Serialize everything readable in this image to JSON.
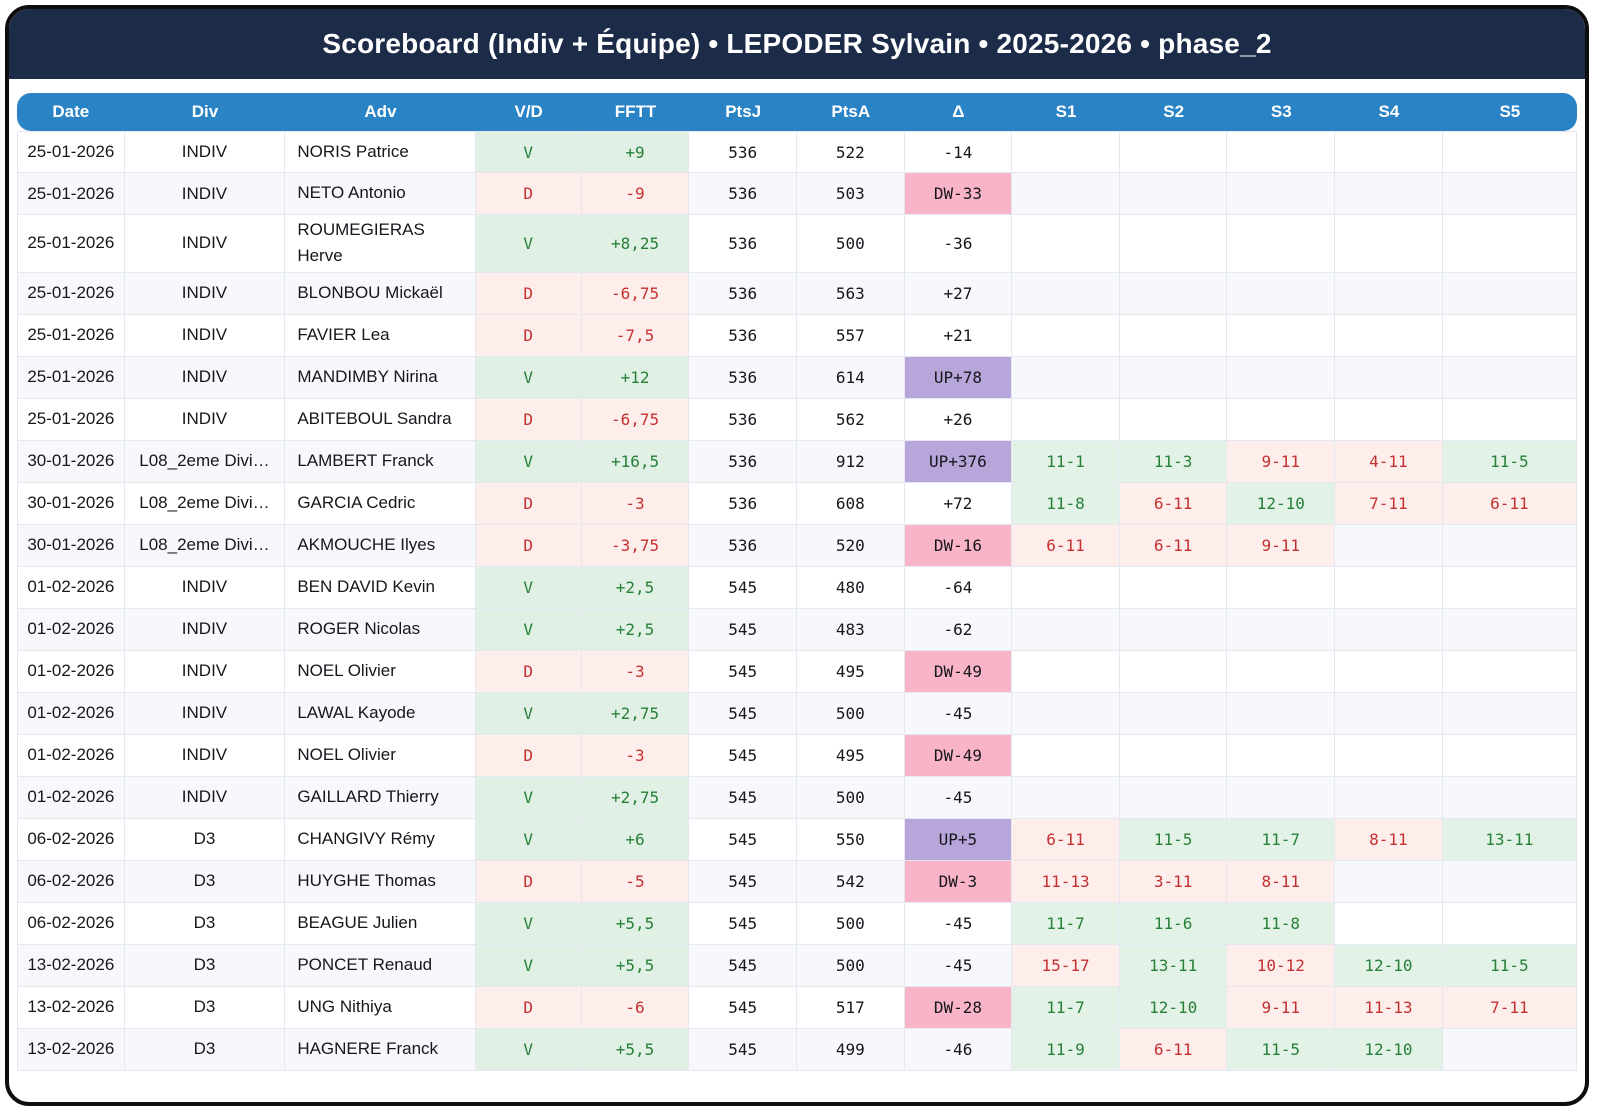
{
  "title": "Scoreboard (Indiv + Équipe) • LEPODER Sylvain • 2025-2026 • phase_2",
  "colors": {
    "title_bar": "#1c2b48",
    "header_bg": "#2a83c5",
    "border": "#e5e8f0",
    "stripe_bg": "#f6f8fc",
    "win_bg": "#e0f0e4",
    "win_text": "#268038",
    "set_win_bg": "#e3f2e7",
    "loss_bg": "#fdedeb",
    "loss_text": "#c43131",
    "up_bg": "#b8a6da",
    "dw_bg": "#f9b4c8"
  },
  "table": {
    "columns": [
      "Date",
      "Div",
      "Adv",
      "V/D",
      "FFTT",
      "PtsJ",
      "PtsA",
      "Δ",
      "S1",
      "S2",
      "S3",
      "S4",
      "S5"
    ],
    "rows": [
      {
        "date": "25-01-2026",
        "div": "INDIV",
        "adv": "NORIS Patrice",
        "vd": "V",
        "fftt": "+9",
        "ptsj": "536",
        "ptsa": "522",
        "delta": "-14",
        "sets": [
          "",
          "",
          "",
          "",
          ""
        ]
      },
      {
        "date": "25-01-2026",
        "div": "INDIV",
        "adv": "NETO Antonio",
        "vd": "D",
        "fftt": "-9",
        "ptsj": "536",
        "ptsa": "503",
        "delta": "DW-33",
        "sets": [
          "",
          "",
          "",
          "",
          ""
        ]
      },
      {
        "date": "25-01-2026",
        "div": "INDIV",
        "adv": "ROUMEGIERAS Herve",
        "vd": "V",
        "fftt": "+8,25",
        "ptsj": "536",
        "ptsa": "500",
        "delta": "-36",
        "sets": [
          "",
          "",
          "",
          "",
          ""
        ]
      },
      {
        "date": "25-01-2026",
        "div": "INDIV",
        "adv": "BLONBOU Mickaël",
        "vd": "D",
        "fftt": "-6,75",
        "ptsj": "536",
        "ptsa": "563",
        "delta": "+27",
        "sets": [
          "",
          "",
          "",
          "",
          ""
        ]
      },
      {
        "date": "25-01-2026",
        "div": "INDIV",
        "adv": "FAVIER Lea",
        "vd": "D",
        "fftt": "-7,5",
        "ptsj": "536",
        "ptsa": "557",
        "delta": "+21",
        "sets": [
          "",
          "",
          "",
          "",
          ""
        ]
      },
      {
        "date": "25-01-2026",
        "div": "INDIV",
        "adv": "MANDIMBY Nirina",
        "vd": "V",
        "fftt": "+12",
        "ptsj": "536",
        "ptsa": "614",
        "delta": "UP+78",
        "sets": [
          "",
          "",
          "",
          "",
          ""
        ]
      },
      {
        "date": "25-01-2026",
        "div": "INDIV",
        "adv": "ABITEBOUL Sandra",
        "vd": "D",
        "fftt": "-6,75",
        "ptsj": "536",
        "ptsa": "562",
        "delta": "+26",
        "sets": [
          "",
          "",
          "",
          "",
          ""
        ]
      },
      {
        "date": "30-01-2026",
        "div": "L08_2eme Divi…",
        "adv": "LAMBERT Franck",
        "vd": "V",
        "fftt": "+16,5",
        "ptsj": "536",
        "ptsa": "912",
        "delta": "UP+376",
        "sets": [
          "11-1",
          "11-3",
          "9-11",
          "4-11",
          "11-5"
        ]
      },
      {
        "date": "30-01-2026",
        "div": "L08_2eme Divi…",
        "adv": "GARCIA Cedric",
        "vd": "D",
        "fftt": "-3",
        "ptsj": "536",
        "ptsa": "608",
        "delta": "+72",
        "sets": [
          "11-8",
          "6-11",
          "12-10",
          "7-11",
          "6-11"
        ]
      },
      {
        "date": "30-01-2026",
        "div": "L08_2eme Divi…",
        "adv": "AKMOUCHE Ilyes",
        "vd": "D",
        "fftt": "-3,75",
        "ptsj": "536",
        "ptsa": "520",
        "delta": "DW-16",
        "sets": [
          "6-11",
          "6-11",
          "9-11",
          "",
          ""
        ]
      },
      {
        "date": "01-02-2026",
        "div": "INDIV",
        "adv": "BEN DAVID Kevin",
        "vd": "V",
        "fftt": "+2,5",
        "ptsj": "545",
        "ptsa": "480",
        "delta": "-64",
        "sets": [
          "",
          "",
          "",
          "",
          ""
        ]
      },
      {
        "date": "01-02-2026",
        "div": "INDIV",
        "adv": "ROGER Nicolas",
        "vd": "V",
        "fftt": "+2,5",
        "ptsj": "545",
        "ptsa": "483",
        "delta": "-62",
        "sets": [
          "",
          "",
          "",
          "",
          ""
        ]
      },
      {
        "date": "01-02-2026",
        "div": "INDIV",
        "adv": "NOEL Olivier",
        "vd": "D",
        "fftt": "-3",
        "ptsj": "545",
        "ptsa": "495",
        "delta": "DW-49",
        "sets": [
          "",
          "",
          "",
          "",
          ""
        ]
      },
      {
        "date": "01-02-2026",
        "div": "INDIV",
        "adv": "LAWAL Kayode",
        "vd": "V",
        "fftt": "+2,75",
        "ptsj": "545",
        "ptsa": "500",
        "delta": "-45",
        "sets": [
          "",
          "",
          "",
          "",
          ""
        ]
      },
      {
        "date": "01-02-2026",
        "div": "INDIV",
        "adv": "NOEL Olivier",
        "vd": "D",
        "fftt": "-3",
        "ptsj": "545",
        "ptsa": "495",
        "delta": "DW-49",
        "sets": [
          "",
          "",
          "",
          "",
          ""
        ]
      },
      {
        "date": "01-02-2026",
        "div": "INDIV",
        "adv": "GAILLARD Thierry",
        "vd": "V",
        "fftt": "+2,75",
        "ptsj": "545",
        "ptsa": "500",
        "delta": "-45",
        "sets": [
          "",
          "",
          "",
          "",
          ""
        ]
      },
      {
        "date": "06-02-2026",
        "div": "D3",
        "adv": "CHANGIVY Rémy",
        "vd": "V",
        "fftt": "+6",
        "ptsj": "545",
        "ptsa": "550",
        "delta": "UP+5",
        "sets": [
          "6-11",
          "11-5",
          "11-7",
          "8-11",
          "13-11"
        ]
      },
      {
        "date": "06-02-2026",
        "div": "D3",
        "adv": "HUYGHE Thomas",
        "vd": "D",
        "fftt": "-5",
        "ptsj": "545",
        "ptsa": "542",
        "delta": "DW-3",
        "sets": [
          "11-13",
          "3-11",
          "8-11",
          "",
          ""
        ]
      },
      {
        "date": "06-02-2026",
        "div": "D3",
        "adv": "BEAGUE Julien",
        "vd": "V",
        "fftt": "+5,5",
        "ptsj": "545",
        "ptsa": "500",
        "delta": "-45",
        "sets": [
          "11-7",
          "11-6",
          "11-8",
          "",
          ""
        ]
      },
      {
        "date": "13-02-2026",
        "div": "D3",
        "adv": "PONCET Renaud",
        "vd": "V",
        "fftt": "+5,5",
        "ptsj": "545",
        "ptsa": "500",
        "delta": "-45",
        "sets": [
          "15-17",
          "13-11",
          "10-12",
          "12-10",
          "11-5"
        ]
      },
      {
        "date": "13-02-2026",
        "div": "D3",
        "adv": "UNG Nithiya",
        "vd": "D",
        "fftt": "-6",
        "ptsj": "545",
        "ptsa": "517",
        "delta": "DW-28",
        "sets": [
          "11-7",
          "12-10",
          "9-11",
          "11-13",
          "7-11"
        ]
      },
      {
        "date": "13-02-2026",
        "div": "D3",
        "adv": "HAGNERE Franck",
        "vd": "V",
        "fftt": "+5,5",
        "ptsj": "545",
        "ptsa": "499",
        "delta": "-46",
        "sets": [
          "11-9",
          "6-11",
          "11-5",
          "12-10",
          ""
        ]
      }
    ]
  }
}
